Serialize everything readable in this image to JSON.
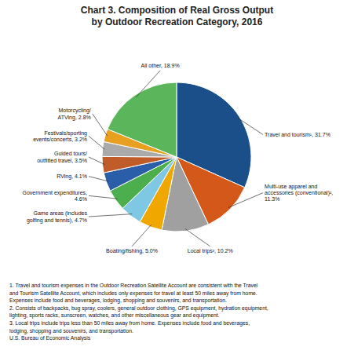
{
  "chart_data": {
    "type": "pie",
    "title": "Chart 3. Composition of Real Gross Output",
    "subtitle": "by Outdoor Recreation Category, 2016",
    "categories": [
      "Travel and tourism¹, 31.7%",
      "Multi-use apparel and\naccessories (conventional)²,\n11.3%",
      "Local trips³, 10.2%",
      "Boating/fishing, 5.0%",
      "Game areas (includes\ngolfing and tennis), 4.7%",
      "Government expenditures,\n4.6%",
      "RVing, 4.1%",
      "Guided tours/\noutfitted travel, 3.5%",
      "Festivals/sporting\nevents/concerts, 3.2%",
      "Motorcycling/\nATVing, 2.8%",
      "All other, 18.9%"
    ],
    "values": [
      31.7,
      11.3,
      10.2,
      5.0,
      4.7,
      4.6,
      4.1,
      3.5,
      3.2,
      2.8,
      18.9
    ],
    "colors": [
      "#1a4f8a",
      "#d4581a",
      "#a0a0a0",
      "#f0a800",
      "#7ec8e3",
      "#4cae4c",
      "#2a5ea8",
      "#c05c2a",
      "#aaaaaa",
      "#e8a020",
      "#5bb55b"
    ],
    "annotations": [
      "1. Travel and tourism expenses in the Outdoor Recreation Satellite Account are consistent with the Travel\nand Tourism Satellite Account, which includes only expenses for travel at least 50 miles away from home.\nExpenses include food and beverages, lodging, shopping and souvenirs, and transportation.",
      "2. Consists of backpacks, bug spray, coolers, general outdoor clothing, GPS equipment, hydration equipment,\nlighting, sports racks, sunscreen, watches, and other miscellaneous gear and equipment.",
      "3. Local trips include trips less than 50 miles away from home. Expenses include food and beverages,\nlodging, shopping and souvenirs, and transportation.",
      "U.S. Bureau of Economic Analysis"
    ]
  }
}
